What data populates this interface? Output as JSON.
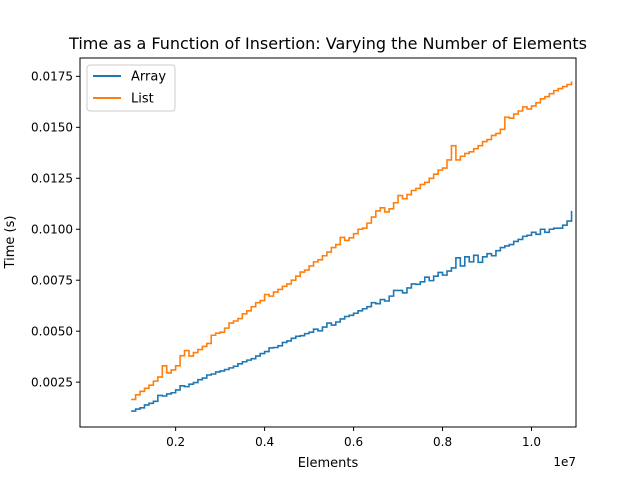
{
  "chart_data": {
    "type": "line",
    "step": true,
    "title": "Time as a Function of Insertion: Varying the Number of Elements",
    "xlabel": "Elements",
    "ylabel": "Time (s)",
    "x_offset_label": "1e7",
    "xlim": [
      -0.015,
      1.1
    ],
    "ylim": [
      0.0003,
      0.0184
    ],
    "x_scale_note": "x values in units of 1e7 elements",
    "x_ticks": [
      0.2,
      0.4,
      0.6,
      0.8,
      1.0
    ],
    "x_tick_labels": [
      "0.2",
      "0.4",
      "0.6",
      "0.8",
      "1.0"
    ],
    "y_ticks": [
      0.0025,
      0.005,
      0.0075,
      0.01,
      0.0125,
      0.015,
      0.0175
    ],
    "y_tick_labels": [
      "0.0025",
      "0.0050",
      "0.0075",
      "0.0100",
      "0.0125",
      "0.0150",
      "0.0175"
    ],
    "legend_position": "top-left",
    "grid": false,
    "x": [
      0.1,
      0.11,
      0.12,
      0.13,
      0.14,
      0.15,
      0.16,
      0.17,
      0.18,
      0.19,
      0.2,
      0.21,
      0.22,
      0.23,
      0.24,
      0.25,
      0.26,
      0.27,
      0.28,
      0.29,
      0.3,
      0.31,
      0.32,
      0.33,
      0.34,
      0.35,
      0.36,
      0.37,
      0.38,
      0.39,
      0.4,
      0.41,
      0.42,
      0.43,
      0.44,
      0.45,
      0.46,
      0.47,
      0.48,
      0.49,
      0.5,
      0.51,
      0.52,
      0.53,
      0.54,
      0.55,
      0.56,
      0.57,
      0.58,
      0.59,
      0.6,
      0.61,
      0.62,
      0.63,
      0.64,
      0.65,
      0.66,
      0.67,
      0.68,
      0.69,
      0.7,
      0.71,
      0.72,
      0.73,
      0.74,
      0.75,
      0.76,
      0.77,
      0.78,
      0.79,
      0.8,
      0.81,
      0.82,
      0.83,
      0.84,
      0.85,
      0.86,
      0.87,
      0.88,
      0.89,
      0.9,
      0.91,
      0.92,
      0.93,
      0.94,
      0.95,
      0.96,
      0.97,
      0.98,
      0.99,
      1.0,
      1.01,
      1.02,
      1.03,
      1.04,
      1.05,
      1.06,
      1.07,
      1.08,
      1.09
    ],
    "series": [
      {
        "name": "Array",
        "color": "#1f77b4",
        "values": [
          0.00108,
          0.00118,
          0.00124,
          0.00138,
          0.00146,
          0.00156,
          0.00185,
          0.00182,
          0.00192,
          0.00198,
          0.00212,
          0.00232,
          0.00228,
          0.0024,
          0.00248,
          0.00262,
          0.0027,
          0.00285,
          0.0029,
          0.003,
          0.00305,
          0.00312,
          0.0032,
          0.00328,
          0.0034,
          0.0035,
          0.00358,
          0.00365,
          0.00378,
          0.0039,
          0.004,
          0.00418,
          0.0042,
          0.00428,
          0.00445,
          0.00452,
          0.00465,
          0.00475,
          0.00478,
          0.00488,
          0.00495,
          0.0051,
          0.00502,
          0.0052,
          0.0054,
          0.0053,
          0.00545,
          0.0056,
          0.00572,
          0.00578,
          0.00588,
          0.006,
          0.0061,
          0.0062,
          0.0064,
          0.00635,
          0.00655,
          0.00648,
          0.00672,
          0.007,
          0.007,
          0.00688,
          0.00712,
          0.00732,
          0.0073,
          0.00742,
          0.00765,
          0.00748,
          0.0077,
          0.00788,
          0.00775,
          0.00795,
          0.0081,
          0.0086,
          0.0082,
          0.00865,
          0.0084,
          0.00872,
          0.00838,
          0.00865,
          0.0088,
          0.0087,
          0.00895,
          0.0091,
          0.00918,
          0.00925,
          0.0094,
          0.0095,
          0.00965,
          0.0097,
          0.00985,
          0.00975,
          0.01,
          0.00985,
          0.01,
          0.01005,
          0.01005,
          0.0102,
          0.0104,
          0.0109
        ]
      },
      {
        "name": "List",
        "color": "#ff7f0e",
        "values": [
          0.00165,
          0.00188,
          0.00205,
          0.0022,
          0.00235,
          0.00255,
          0.00275,
          0.0033,
          0.00295,
          0.0031,
          0.0033,
          0.0038,
          0.00405,
          0.00378,
          0.00395,
          0.0041,
          0.00425,
          0.0044,
          0.0048,
          0.0049,
          0.00495,
          0.00515,
          0.0054,
          0.0055,
          0.00562,
          0.00585,
          0.006,
          0.0062,
          0.0064,
          0.0065,
          0.0068,
          0.00672,
          0.00692,
          0.00705,
          0.0072,
          0.00732,
          0.0075,
          0.0077,
          0.0079,
          0.008,
          0.0082,
          0.0084,
          0.0085,
          0.0087,
          0.00888,
          0.0091,
          0.00925,
          0.0096,
          0.00945,
          0.00958,
          0.00978,
          0.01,
          0.01005,
          0.0103,
          0.0106,
          0.0109,
          0.01105,
          0.01085,
          0.011,
          0.0113,
          0.01165,
          0.0115,
          0.0117,
          0.0119,
          0.012,
          0.0122,
          0.0123,
          0.0125,
          0.0127,
          0.0129,
          0.013,
          0.0134,
          0.0141,
          0.0134,
          0.01358,
          0.01372,
          0.0138,
          0.01395,
          0.0141,
          0.0143,
          0.0144,
          0.0146,
          0.0147,
          0.0149,
          0.0155,
          0.01545,
          0.01565,
          0.0158,
          0.016,
          0.0159,
          0.01605,
          0.0162,
          0.0164,
          0.0165,
          0.01665,
          0.0168,
          0.0169,
          0.017,
          0.0171,
          0.01725
        ]
      }
    ]
  }
}
